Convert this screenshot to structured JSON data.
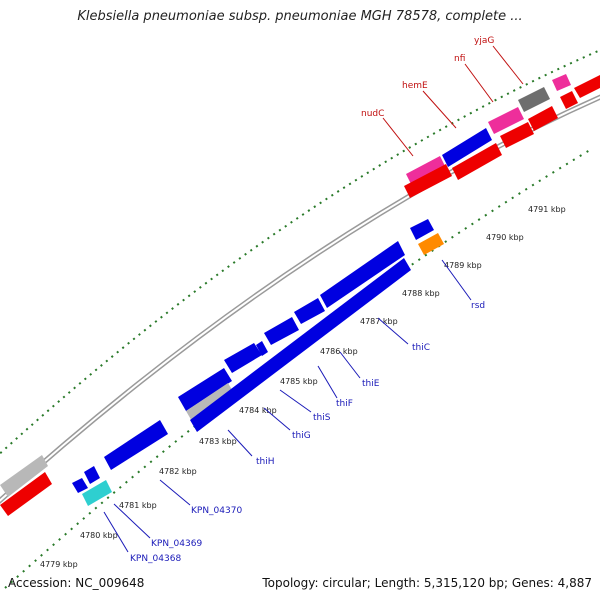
{
  "title": "Klebsiella pneumoniae subsp. pneumoniae MGH 78578, complete ...",
  "footer": {
    "accession": "Accession: NC_009648",
    "summary": "Topology: circular; Length: 5,315,120 bp; Genes: 4,887"
  },
  "scale_labels": [
    "4779 kbp",
    "4780 kbp",
    "4781 kbp",
    "4782 kbp",
    "4783 kbp",
    "4784 kbp",
    "4785 kbp",
    "4786 kbp",
    "4787 kbp",
    "4788 kbp",
    "4789 kbp",
    "4790 kbp",
    "4791 kbp"
  ],
  "gene_labels_blue": [
    "KPN_04368",
    "KPN_04369",
    "KPN_04370",
    "thiH",
    "thiG",
    "thiS",
    "thiF",
    "thiE",
    "thiC",
    "rsd"
  ],
  "gene_labels_red": [
    "nudC",
    "hemE",
    "nfi",
    "yjaG"
  ],
  "colors": {
    "forward_gene": "#0000e0",
    "reverse_gene": "#ee0000",
    "highlight_gene": "#ee2e9b",
    "grey_gene": "#b8b8b8",
    "dark_grey_gene": "#6e6e6e",
    "cyan_gene": "#2ecfd0",
    "orange_gene": "#ff8a00",
    "backbone": "#9a9a9a",
    "tick": "#2a7a2a"
  }
}
